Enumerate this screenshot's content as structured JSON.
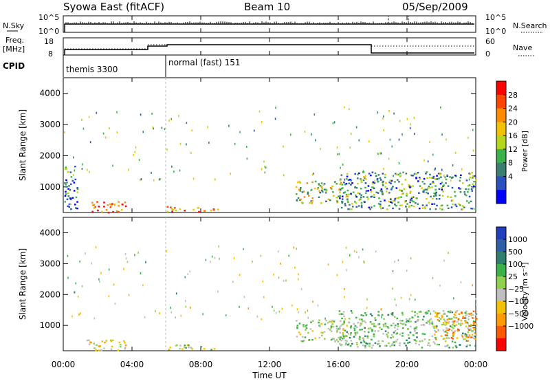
{
  "header": {
    "station": "Syowa East (fitACF)",
    "beam": "Beam 10",
    "date": "05/Sep/2009"
  },
  "top_panels": {
    "nsky_label": "N.Sky",
    "nsky_tick_top": "10^5",
    "nsky_tick_bottom": "10^0",
    "nsearch_tick_top": "10^5",
    "nsearch_tick_bottom": "10^0",
    "nsearch_label": "N.Search",
    "freq_label_1": "Freq.",
    "freq_label_2": "[MHz]",
    "freq_tick_top": "18",
    "freq_tick_bottom": "8",
    "nave_tick_top": "60",
    "nave_tick_bottom": "0",
    "nave_label": "Nave",
    "cpid_label": "CPID",
    "cpid_mode_1": "themis 3300",
    "cpid_mode_2": "normal (fast) 151"
  },
  "axes": {
    "ylabel": "Slant Range [km]",
    "xlabel": "Time UT",
    "y_ticks": [
      "1000",
      "2000",
      "3000",
      "4000"
    ],
    "x_ticks": [
      "00:00",
      "04:00",
      "08:00",
      "12:00",
      "16:00",
      "20:00",
      "00:00"
    ]
  },
  "colorbars": {
    "power": {
      "label": "Power [dB]",
      "ticks": [
        "4",
        "8",
        "12",
        "16",
        "20",
        "24",
        "28"
      ],
      "colors": [
        "#0000ff",
        "#2a52be",
        "#3a7f6f",
        "#3cb34a",
        "#b5d61a",
        "#f2c200",
        "#ff8c00",
        "#ff4500",
        "#ff0000"
      ]
    },
    "velocity": {
      "label": "Velocity [m s⁻¹]",
      "ticks": [
        "1000",
        "500",
        "100",
        "25",
        "−25",
        "−100",
        "−500",
        "−1000"
      ],
      "colors": [
        "#1f3fbf",
        "#2f5fa8",
        "#2f7f6f",
        "#3cb34a",
        "#8fd14f",
        "#bebebe",
        "#f2c200",
        "#ff9a00",
        "#ff5a00",
        "#ff0000"
      ]
    }
  },
  "chart_data": [
    {
      "type": "heatmap",
      "title": "Power",
      "xlabel": "Time UT",
      "ylabel": "Slant Range [km]",
      "x_range_hours": [
        0,
        24
      ],
      "ylim": [
        180,
        4500
      ],
      "colorbar_label": "Power [dB]",
      "colorbar_range": [
        0,
        30
      ],
      "scatter_regions": [
        {
          "t_start": 1.3,
          "t_end": 3.6,
          "r_min": 200,
          "r_max": 550,
          "value": 24
        },
        {
          "t_start": 6.0,
          "t_end": 9.0,
          "r_min": 230,
          "r_max": 400,
          "value": 22
        },
        {
          "t_start": 13.5,
          "t_end": 16.5,
          "r_min": 500,
          "r_max": 1200,
          "value": 14
        },
        {
          "t_start": 16.0,
          "t_end": 24.0,
          "r_min": 300,
          "r_max": 1500,
          "value": 10
        },
        {
          "t_start": 0.0,
          "t_end": 0.8,
          "r_min": 300,
          "r_max": 1700,
          "value": 8
        }
      ]
    },
    {
      "type": "heatmap",
      "title": "Velocity",
      "xlabel": "Time UT",
      "ylabel": "Slant Range [km]",
      "x_range_hours": [
        0,
        24
      ],
      "ylim": [
        180,
        4500
      ],
      "colorbar_label": "Velocity [m s⁻¹]",
      "colorbar_range": [
        -1000,
        1000
      ],
      "scatter_regions": [
        {
          "t_start": 1.3,
          "t_end": 3.6,
          "r_min": 200,
          "r_max": 550,
          "value": -200
        },
        {
          "t_start": 6.0,
          "t_end": 9.0,
          "r_min": 230,
          "r_max": 400,
          "value": 50
        },
        {
          "t_start": 13.5,
          "t_end": 16.5,
          "r_min": 500,
          "r_max": 1200,
          "value": -30
        },
        {
          "t_start": 16.0,
          "t_end": 24.0,
          "r_min": 300,
          "r_max": 1500,
          "value": 150
        },
        {
          "t_start": 21.5,
          "t_end": 24.0,
          "r_min": 500,
          "r_max": 1500,
          "value": -400
        }
      ]
    }
  ]
}
